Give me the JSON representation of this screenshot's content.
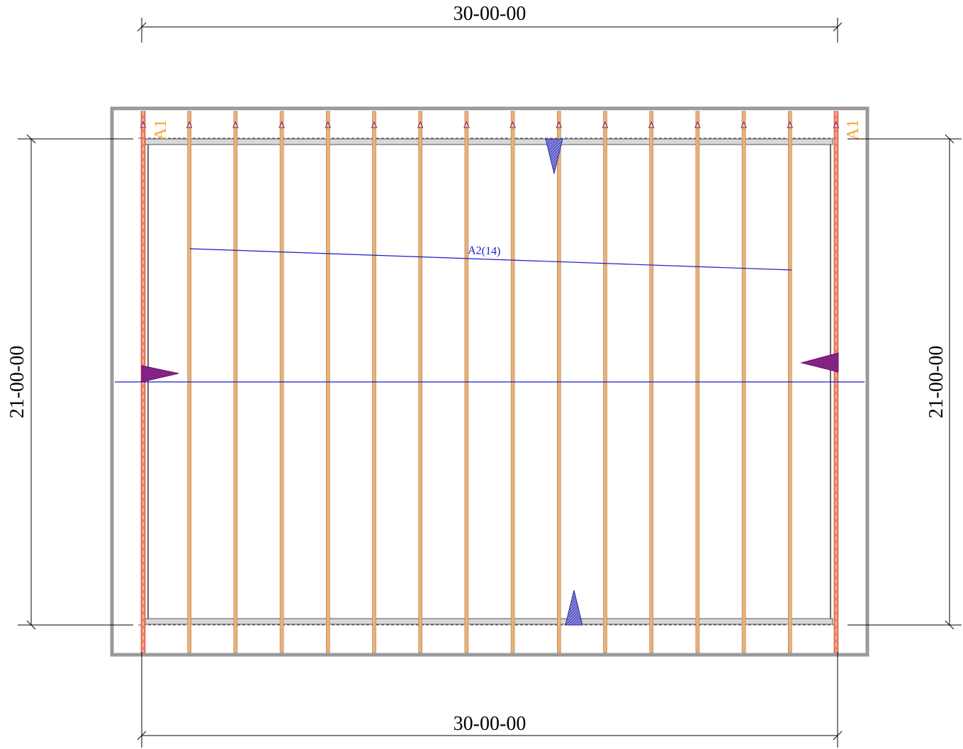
{
  "dimensions": {
    "top": "30-00-00",
    "bottom": "30-00-00",
    "left": "21-00-00",
    "right": "21-00-00"
  },
  "labels": {
    "end_left": "A1",
    "end_right": "A1",
    "truss_group": "A2(14)"
  },
  "colors": {
    "truss": "#e8b27a",
    "end_truss": "#f08060",
    "wall": "#9a9a9a",
    "bearing": "#d4d4d4",
    "label_blue": "#1a1acc",
    "a1_orange": "#f5a623",
    "marker_purple": "#8b1a8b",
    "marker_blue": "#3a3ab0"
  },
  "trusses": {
    "end_count": 2,
    "interior_count": 14
  }
}
